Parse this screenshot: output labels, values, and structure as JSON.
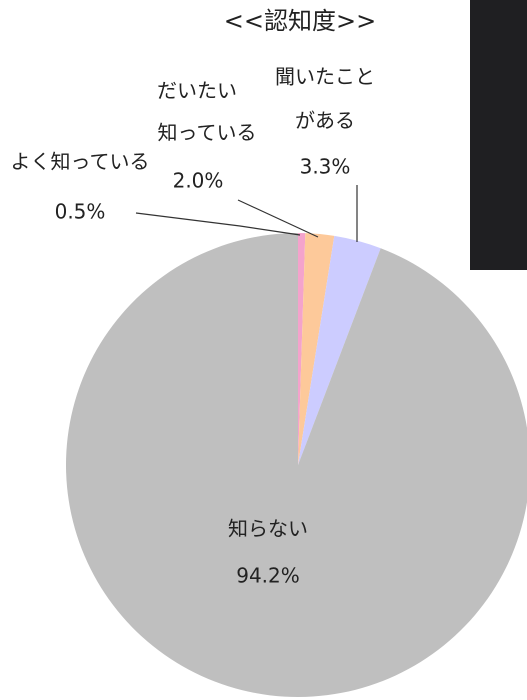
{
  "chart_data": {
    "type": "pie",
    "title": "<<認知度>>",
    "labels": [
      [
        "よく知っている"
      ],
      [
        "だいたい",
        "知っている"
      ],
      [
        "聞いたこと",
        "がある"
      ],
      [
        "知らない"
      ]
    ],
    "values": [
      0.5,
      2.0,
      3.3,
      94.2
    ],
    "value_labels": [
      "0.5%",
      "2.0%",
      "3.3%",
      "94.2%"
    ],
    "colors": [
      "#f4a3cc",
      "#fdc99a",
      "#ccccff",
      "#bfbfbf"
    ]
  }
}
